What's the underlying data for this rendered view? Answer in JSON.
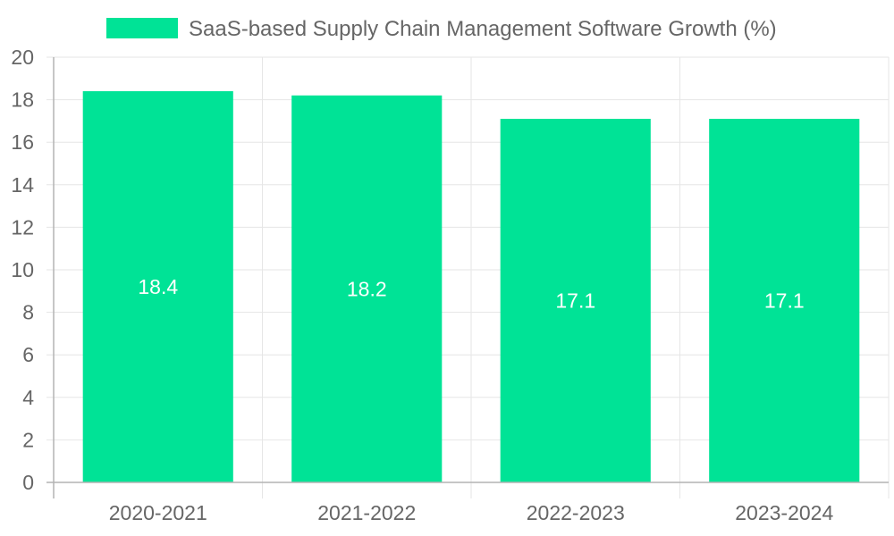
{
  "chart_data": {
    "type": "bar",
    "categories": [
      "2020-2021",
      "2021-2022",
      "2022-2023",
      "2023-2024"
    ],
    "series": [
      {
        "name": "SaaS-based Supply Chain Management Software Growth (%)",
        "values": [
          18.4,
          18.2,
          17.1,
          17.1
        ],
        "color": "#00e396"
      }
    ],
    "ylim": [
      0,
      20
    ],
    "ytick_step": 2,
    "grid": true,
    "legend_position": "top",
    "data_labels": true,
    "title": "",
    "xlabel": "",
    "ylabel": ""
  }
}
